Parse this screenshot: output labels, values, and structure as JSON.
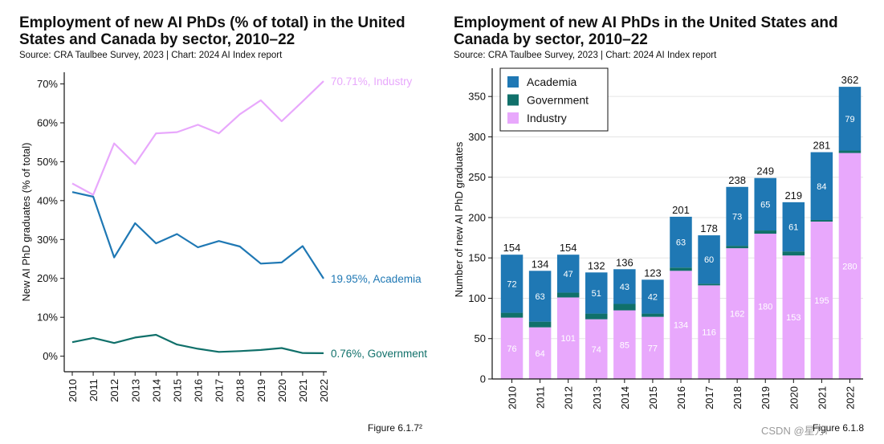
{
  "left": {
    "title": "Employment of new AI PhDs (% of total) in the United States and Canada by sector, 2010–22",
    "source": "Source: CRA Taulbee Survey, 2023 | Chart: 2024 AI Index report",
    "figure": "Figure 6.1.7²"
  },
  "right": {
    "title": "Employment of new AI PhDs in the United States and Canada by sector, 2010–22",
    "source": "Source: CRA Taulbee Survey, 2023 | Chart: 2024 AI Index report",
    "figure": "Figure 6.1.8"
  },
  "watermark": "CSDN @星万i",
  "colors": {
    "industry": "#e8a8fc",
    "academia": "#1f78b4",
    "government": "#10706a",
    "axis": "#111111",
    "grid": "#e5e5e5"
  },
  "chart_data": [
    {
      "type": "line",
      "title": "Employment of new AI PhDs (% of total) in the United States and Canada by sector, 2010–22",
      "xlabel": "",
      "ylabel": "New AI PhD graduates (% of total)",
      "ylim": [
        -4,
        73
      ],
      "yticks": [
        0,
        10,
        20,
        30,
        40,
        50,
        60,
        70
      ],
      "ytick_labels": [
        "0%",
        "10%",
        "20%",
        "30%",
        "40%",
        "50%",
        "60%",
        "70%"
      ],
      "x": [
        "2010",
        "2011",
        "2012",
        "2013",
        "2014",
        "2015",
        "2016",
        "2017",
        "2018",
        "2019",
        "2020",
        "2021",
        "2022"
      ],
      "series": [
        {
          "name": "Industry",
          "key": "industry",
          "end_label": "70.71%, Industry",
          "values": [
            44.4,
            41.5,
            54.7,
            49.4,
            57.3,
            57.6,
            59.5,
            57.3,
            62.2,
            65.8,
            60.4,
            65.5,
            70.71
          ]
        },
        {
          "name": "Academia",
          "key": "academia",
          "end_label": "19.95%, Academia",
          "values": [
            42.2,
            41.0,
            25.4,
            34.2,
            29.0,
            31.4,
            28.0,
            29.6,
            28.2,
            23.8,
            24.1,
            28.3,
            19.95
          ]
        },
        {
          "name": "Government",
          "key": "government",
          "end_label": "0.76%, Government",
          "values": [
            3.6,
            4.7,
            3.4,
            4.8,
            5.5,
            3.0,
            1.9,
            1.1,
            1.3,
            1.6,
            2.1,
            0.8,
            0.76
          ]
        }
      ]
    },
    {
      "type": "bar",
      "stacked": true,
      "title": "Employment of new AI PhDs in the United States and Canada by sector, 2010–22",
      "xlabel": "",
      "ylabel": "Number of new AI PhD graduates",
      "ylim": [
        0,
        385
      ],
      "yticks": [
        0,
        50,
        100,
        150,
        200,
        250,
        300,
        350
      ],
      "legend": "top-left",
      "categories": [
        "2010",
        "2011",
        "2012",
        "2013",
        "2014",
        "2015",
        "2016",
        "2017",
        "2018",
        "2019",
        "2020",
        "2021",
        "2022"
      ],
      "totals": [
        154,
        134,
        154,
        132,
        136,
        123,
        201,
        178,
        238,
        249,
        219,
        281,
        362
      ],
      "series": [
        {
          "name": "Industry",
          "key": "industry",
          "values": [
            76,
            64,
            101,
            74,
            85,
            77,
            134,
            116,
            162,
            180,
            153,
            195,
            280
          ]
        },
        {
          "name": "Government",
          "key": "government",
          "values": [
            6,
            7,
            6,
            7,
            8,
            4,
            4,
            2,
            3,
            4,
            5,
            2,
            3
          ]
        },
        {
          "name": "Academia",
          "key": "academia",
          "values": [
            72,
            63,
            47,
            51,
            43,
            42,
            63,
            60,
            73,
            65,
            61,
            84,
            79
          ]
        }
      ],
      "legend_entries": [
        "Academia",
        "Government",
        "Industry"
      ]
    }
  ]
}
